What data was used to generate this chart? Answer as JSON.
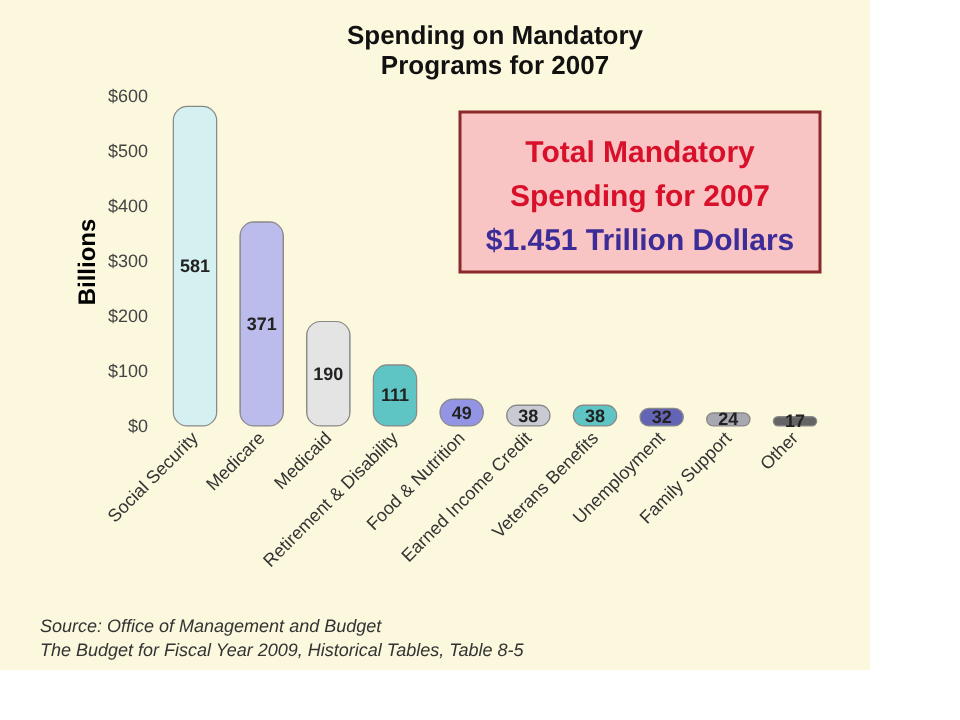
{
  "chart_data": {
    "type": "bar",
    "title": [
      "Spending on Mandatory",
      "Programs for 2007"
    ],
    "ylabel": "Billions",
    "categories": [
      "Social Security",
      "Medicare",
      "Medicaid",
      "Retirement & Disability",
      "Food & Nutrition",
      "Earned Income Credit",
      "Veterans Benefits",
      "Unemployment",
      "Family Support",
      "Other"
    ],
    "values": [
      581,
      371,
      190,
      111,
      49,
      38,
      38,
      32,
      24,
      17
    ],
    "colors": [
      "#d4f0f0",
      "#bcbcec",
      "#e4e4e4",
      "#5ec4c4",
      "#9494e4",
      "#cacad4",
      "#5ec4c4",
      "#6464b4",
      "#a8a8b0",
      "#646464"
    ],
    "ylim": [
      0,
      600
    ],
    "yticks": [
      {
        "value": 0,
        "label": "$0"
      },
      {
        "value": 100,
        "label": "$100"
      },
      {
        "value": 200,
        "label": "$200"
      },
      {
        "value": 300,
        "label": "$300"
      },
      {
        "value": 400,
        "label": "$400"
      },
      {
        "value": 500,
        "label": "$500"
      },
      {
        "value": 600,
        "label": "$600"
      }
    ],
    "grid": false,
    "data_labels": true,
    "annotations": [
      "Total Mandatory Spending for 2007",
      "$1.451 Trillion Dollars",
      "Source: Office of Management and Budget",
      "The Budget for Fiscal Year 2009, Historical Tables, Table 8-5"
    ]
  }
}
